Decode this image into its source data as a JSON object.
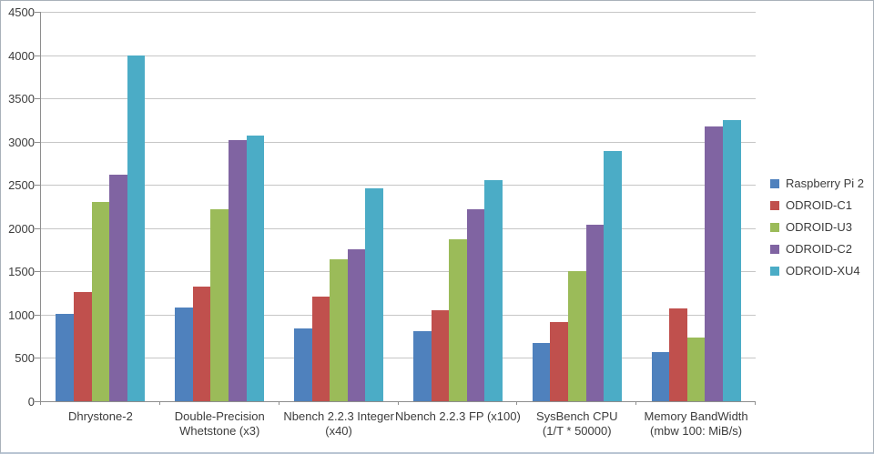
{
  "chart_data": {
    "type": "bar",
    "title": "",
    "xlabel": "",
    "ylabel": "",
    "ylim": [
      0,
      4500
    ],
    "ytick_step": 500,
    "grid": true,
    "legend_position": "right",
    "categories": [
      "Dhrystone-2",
      "Double-Precision\nWhetstone (x3)",
      "Nbench 2.2.3 Integer\n(x40)",
      "Nbench 2.2.3 FP (x100)",
      "SysBench CPU\n(1/T * 50000)",
      "Memory BandWidth\n(mbw 100: MiB/s)"
    ],
    "series": [
      {
        "name": "Raspberry Pi 2",
        "color": "#4F81BD",
        "values": [
          1010,
          1080,
          845,
          810,
          670,
          565
        ]
      },
      {
        "name": "ODROID-C1",
        "color": "#C0504D",
        "values": [
          1260,
          1325,
          1210,
          1050,
          910,
          1075
        ]
      },
      {
        "name": "ODROID-U3",
        "color": "#9BBB59",
        "values": [
          2300,
          2220,
          1645,
          1870,
          1500,
          735
        ]
      },
      {
        "name": "ODROID-C2",
        "color": "#8064A2",
        "values": [
          2620,
          3015,
          1760,
          2215,
          2040,
          3180
        ]
      },
      {
        "name": "ODROID-XU4",
        "color": "#4BACC6",
        "values": [
          4000,
          3075,
          2460,
          2550,
          2890,
          3245
        ]
      }
    ],
    "colors": {
      "background": "#ffffff",
      "frame_border": "#aab2ba",
      "gridline": "#c6c6c6",
      "axis": "#8e8e8e",
      "text": "#3c3c3c"
    }
  }
}
